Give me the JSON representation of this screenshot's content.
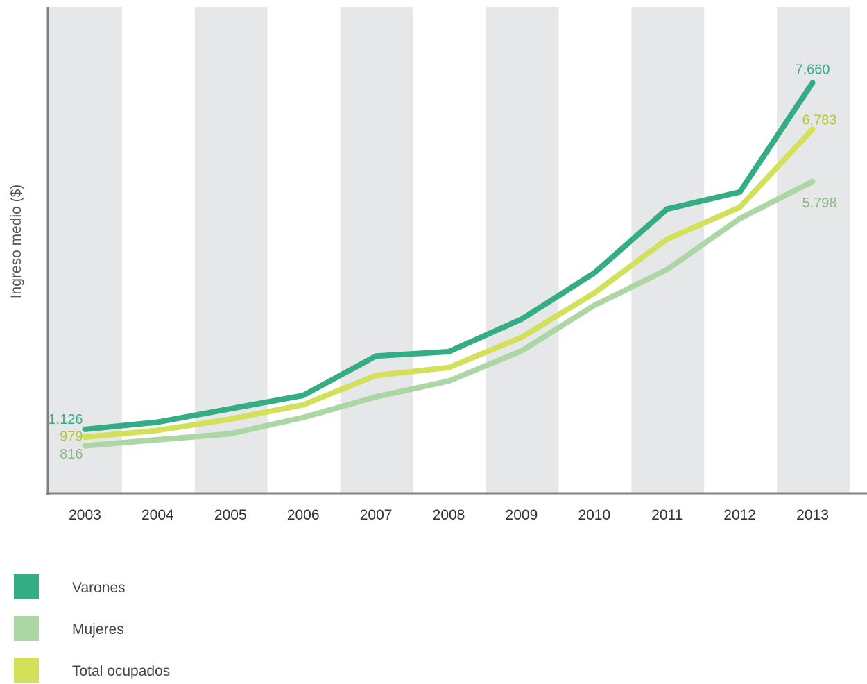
{
  "chart_data": {
    "type": "line",
    "title": "",
    "xlabel": "",
    "ylabel": "Ingreso medio ($)",
    "x": [
      "2003",
      "2004",
      "2005",
      "2006",
      "2007",
      "2008",
      "2009",
      "2010",
      "2011",
      "2012",
      "2013"
    ],
    "ylim": [
      0,
      8400
    ],
    "grid": false,
    "alternating_column_shading": true,
    "shade_color": "#e6e7e8",
    "legend_position": "bottom-left",
    "series": [
      {
        "name": "Varones",
        "color": "#35ad84",
        "values": [
          1126,
          1262,
          1515,
          1765,
          2508,
          2590,
          3202,
          4073,
          5279,
          5599,
          7660
        ],
        "labels": [
          {
            "index": 0,
            "text": "1.126"
          },
          {
            "index": 10,
            "text": "7.660"
          }
        ]
      },
      {
        "name": "Mujeres",
        "color": "#acd6a4",
        "values": [
          816,
          930,
          1043,
          1350,
          1738,
          2036,
          2604,
          3462,
          4138,
          5099,
          5798
        ],
        "labels": [
          {
            "index": 0,
            "text": "816"
          },
          {
            "index": 10,
            "text": "5.798"
          }
        ]
      },
      {
        "name": "Total ocupados",
        "color": "#d3e05a",
        "values": [
          979,
          1107,
          1318,
          1589,
          2141,
          2291,
          2860,
          3696,
          4710,
          5313,
          6783
        ],
        "labels": [
          {
            "index": 0,
            "text": "979"
          },
          {
            "index": 10,
            "text": "6.783"
          }
        ]
      }
    ],
    "label_colors": {
      "Varones": "#35ad84",
      "Mujeres": "#8ab882",
      "Total ocupados": "#b5c33a"
    },
    "axis_color": "#808080"
  }
}
